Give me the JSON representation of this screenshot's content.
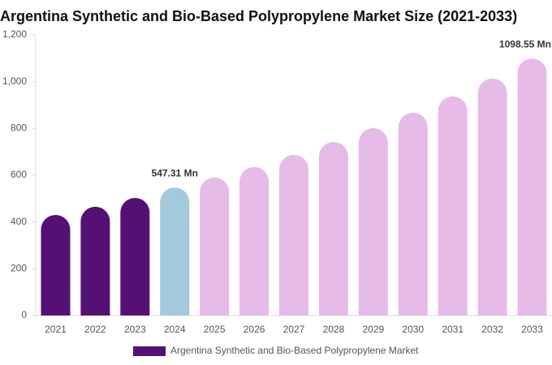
{
  "chart_data": {
    "type": "bar",
    "title": "Argentina Synthetic and Bio-Based Polypropylene Market Size (2021-2033)",
    "categories": [
      "2021",
      "2022",
      "2023",
      "2024",
      "2025",
      "2026",
      "2027",
      "2028",
      "2029",
      "2030",
      "2031",
      "2032",
      "2033"
    ],
    "series": [
      {
        "name": "Argentina Synthetic and Bio-Based Polypropylene Market",
        "color": "#541173",
        "values": [
          430,
          465,
          503,
          547.31,
          590,
          635,
          687,
          742,
          801,
          867,
          937,
          1013,
          1098.55
        ],
        "value_labels": [
          null,
          null,
          null,
          "547.31 Mn",
          null,
          null,
          null,
          null,
          null,
          null,
          null,
          null,
          "1098.55 Mn"
        ],
        "bar_colors": [
          "#541173",
          "#541173",
          "#541173",
          "#a3c9dd",
          "#e6bbe8",
          "#e6bbe8",
          "#e6bbe8",
          "#e6bbe8",
          "#e6bbe8",
          "#e6bbe8",
          "#e6bbe8",
          "#e6bbe8",
          "#e6bbe8"
        ]
      }
    ],
    "ylim": [
      0,
      1200
    ],
    "yticks": [
      0,
      200,
      400,
      600,
      800,
      {
        "value": 1000,
        "label": "1,000"
      },
      {
        "value": 1200,
        "label": "1,200"
      }
    ],
    "grid": false
  }
}
